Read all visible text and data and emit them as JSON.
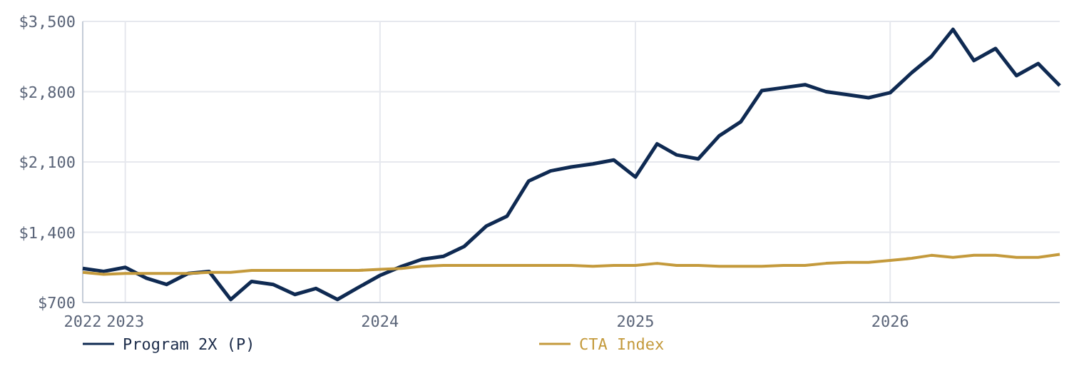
{
  "chart_data": {
    "type": "line",
    "x": [
      "2022-11",
      "2022-12",
      "2023-01",
      "2023-02",
      "2023-03",
      "2023-04",
      "2023-05",
      "2023-06",
      "2023-07",
      "2023-08",
      "2023-09",
      "2023-10",
      "2023-11",
      "2023-12",
      "2024-01",
      "2024-02",
      "2024-03",
      "2024-04",
      "2024-05",
      "2024-06",
      "2024-07",
      "2024-08",
      "2024-09",
      "2024-10",
      "2024-11",
      "2024-12",
      "2025-01",
      "2025-02",
      "2025-03",
      "2025-04",
      "2025-05",
      "2025-06",
      "2025-07",
      "2025-08",
      "2025-09",
      "2025-10",
      "2025-11",
      "2025-12",
      "2026-01",
      "2026-02",
      "2026-03",
      "2026-04",
      "2026-05",
      "2026-06",
      "2026-07",
      "2026-08",
      "2026-09"
    ],
    "series": [
      {
        "name": "Program 2X (P)",
        "color": "#0f2a52",
        "values": [
          1040,
          1010,
          1050,
          940,
          880,
          990,
          1010,
          730,
          910,
          880,
          780,
          840,
          730,
          850,
          970,
          1060,
          1130,
          1160,
          1260,
          1460,
          1560,
          1910,
          2010,
          2050,
          2080,
          2120,
          1950,
          2280,
          2170,
          2130,
          2360,
          2500,
          2810,
          2840,
          2870,
          2800,
          2770,
          2740,
          2790,
          2990,
          3150,
          3420,
          3110,
          3230,
          2960,
          3080,
          2860
        ]
      },
      {
        "name": "CTA Index",
        "color": "#c49a3c",
        "values": [
          1000,
          980,
          990,
          990,
          990,
          990,
          1000,
          1000,
          1020,
          1020,
          1020,
          1020,
          1020,
          1020,
          1030,
          1040,
          1060,
          1070,
          1070,
          1070,
          1070,
          1070,
          1070,
          1070,
          1060,
          1070,
          1070,
          1090,
          1070,
          1070,
          1060,
          1060,
          1060,
          1070,
          1070,
          1090,
          1100,
          1100,
          1120,
          1140,
          1170,
          1150,
          1170,
          1170,
          1150,
          1150,
          1180
        ]
      }
    ],
    "xlim": [
      "2022-11",
      "2026-09"
    ],
    "xticks": [
      {
        "value": "2022-11",
        "label": "2022"
      },
      {
        "value": "2023-01",
        "label": "2023"
      },
      {
        "value": "2024-01",
        "label": "2024"
      },
      {
        "value": "2025-01",
        "label": "2025"
      },
      {
        "value": "2026-01",
        "label": "2026"
      }
    ],
    "ylim": [
      700,
      3500
    ],
    "yticks": [
      {
        "value": 700,
        "label": "$700"
      },
      {
        "value": 1400,
        "label": "$1,400"
      },
      {
        "value": 2100,
        "label": "$2,100"
      },
      {
        "value": 2800,
        "label": "$2,800"
      },
      {
        "value": 3500,
        "label": "$3,500"
      }
    ],
    "grid": true,
    "legend": "bottom",
    "line_style": "solid",
    "marker": "none"
  }
}
